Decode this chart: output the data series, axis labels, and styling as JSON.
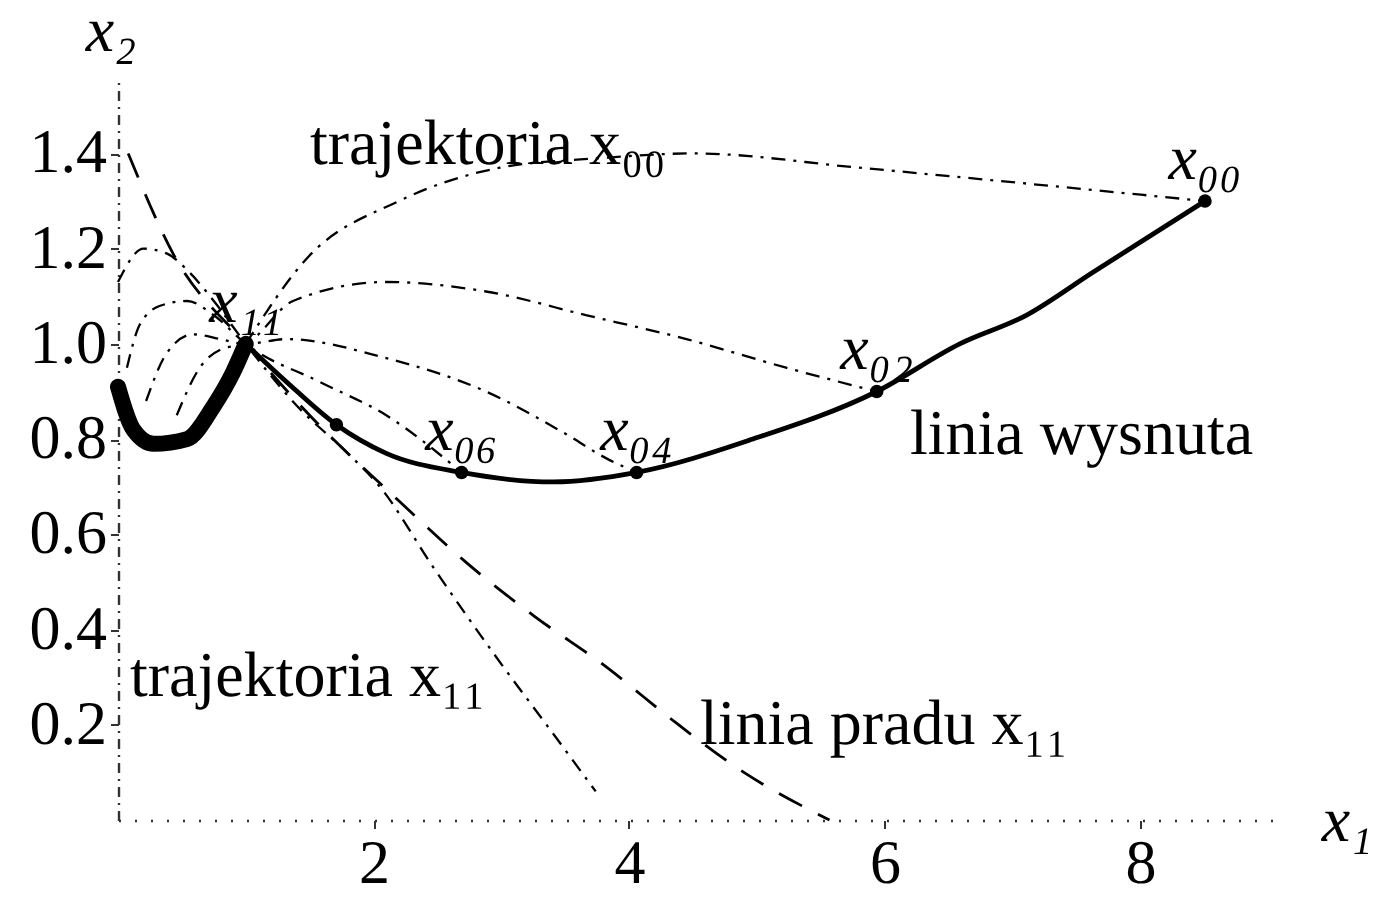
{
  "chart_data": {
    "type": "line",
    "xlabel": "x₁",
    "ylabel": "x₂",
    "xlim": [
      0,
      9.05
    ],
    "ylim": [
      0,
      1.55
    ],
    "xticks": [
      2,
      4,
      6,
      8
    ],
    "yticks": [
      0.2,
      0.4,
      0.6,
      0.8,
      {
        "value": 1,
        "label": "1.0"
      },
      1.2,
      1.4
    ],
    "series": [
      {
        "name": "linia wysnuta",
        "color": "#000000",
        "line_style": "solid",
        "x": [
          1.0,
          1.32,
          1.71,
          2.1,
          2.69,
          3.41,
          4.06,
          4.97,
          5.94,
          6.59,
          7.11,
          7.63,
          8.51
        ],
        "values": [
          1.0,
          0.92,
          0.83,
          0.77,
          0.73,
          0.71,
          0.73,
          0.8,
          0.9,
          1.0,
          1.06,
          1.15,
          1.3
        ]
      },
      {
        "color": "#000000",
        "line_style": "solid",
        "x": [
          0,
          0.12,
          0.28,
          0.54,
          0.75,
          0.9,
          1.0
        ],
        "values": [
          0.91,
          0.82,
          0.79,
          0.8,
          0.87,
          0.94,
          1.0
        ]
      },
      {
        "name": "trajektoria x₀₀",
        "color": "#000000",
        "line_style": "dotted",
        "x": [
          1.0,
          1.48,
          2.2,
          2.99,
          3.77,
          4.5,
          5.8,
          7.37,
          8.51
        ],
        "values": [
          1.0,
          1.18,
          1.3,
          1.37,
          1.39,
          1.4,
          1.37,
          1.33,
          1.3
        ]
      },
      {
        "name": "trajektoria x₁₁",
        "color": "#000000",
        "line_style": "dotted",
        "x": [
          0,
          0.2,
          0.38,
          0.56,
          0.75,
          1.0,
          1.4,
          1.8,
          2.05,
          2.47,
          2.94,
          3.41,
          3.74
        ],
        "values": [
          1.13,
          1.2,
          1.19,
          1.15,
          1.09,
          1.0,
          0.87,
          0.77,
          0.7,
          0.53,
          0.35,
          0.18,
          0.06
        ]
      },
      {
        "name": "linia pradu x₁₁",
        "color": "#000000",
        "line_style": "dashed",
        "x": [
          0.08,
          0.43,
          1.0,
          1.5,
          2.2,
          2.73,
          3.25,
          3.83,
          4.34,
          4.9,
          5.57
        ],
        "values": [
          1.4,
          1.19,
          1.0,
          0.85,
          0.67,
          0.54,
          0.43,
          0.32,
          0.21,
          0.1,
          0.0
        ]
      },
      {
        "color": "#000000",
        "line_style": "dotted",
        "x": [
          0.46,
          0.64,
          0.82,
          1.0,
          1.37,
          2.1,
          2.88,
          3.67,
          4.45,
          5.23,
          5.94
        ],
        "values": [
          0.85,
          0.95,
          0.99,
          1.0,
          1.09,
          1.13,
          1.11,
          1.06,
          1.01,
          0.95,
          0.9
        ]
      },
      {
        "color": "#000000",
        "line_style": "dotted",
        "x": [
          0.22,
          0.38,
          0.59,
          0.8,
          1.0,
          1.32,
          2.1,
          2.88,
          3.51,
          3.82,
          4.06
        ],
        "values": [
          0.88,
          0.98,
          1.02,
          1.01,
          1.0,
          1.01,
          0.97,
          0.9,
          0.81,
          0.76,
          0.73
        ]
      },
      {
        "color": "#000000",
        "line_style": "dotted",
        "x": [
          0.07,
          0.17,
          0.33,
          0.54,
          0.75,
          1.0,
          1.58,
          2.1,
          2.69
        ],
        "values": [
          0.95,
          1.04,
          1.08,
          1.09,
          1.06,
          1.0,
          0.92,
          0.85,
          0.73
        ]
      },
      {
        "type": "scatter",
        "marker": "circle",
        "color": "#000000",
        "x": [
          1.71,
          2.69,
          4.06,
          5.94,
          8.51
        ],
        "values": [
          0.83,
          0.73,
          0.73,
          0.9,
          1.3
        ]
      }
    ],
    "annotations": [
      {
        "text": "x₁₁",
        "x": 1.0,
        "y": 1.0
      },
      {
        "text": "x₀₆",
        "x": 2.69,
        "y": 0.73
      },
      {
        "text": "x₀₄",
        "x": 4.06,
        "y": 0.73
      },
      {
        "text": "x₀₂",
        "x": 5.94,
        "y": 0.9
      },
      {
        "text": "x₀₀",
        "x": 8.51,
        "y": 1.3
      }
    ]
  }
}
